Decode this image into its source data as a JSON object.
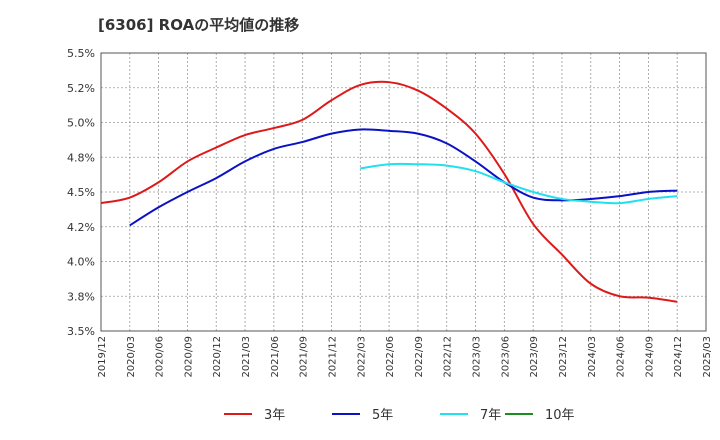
{
  "chart_data": {
    "type": "line",
    "title": "[6306]  ROAの平均値の推移",
    "yticks": [
      "5.5%",
      "5.2%",
      "5.0%",
      "4.8%",
      "4.5%",
      "4.2%",
      "4.0%",
      "3.8%",
      "3.5%"
    ],
    "ylim": [
      3.5,
      5.5
    ],
    "xticks": [
      "2019/12",
      "2020/03",
      "2020/06",
      "2020/09",
      "2020/12",
      "2021/03",
      "2021/06",
      "2021/09",
      "2021/12",
      "2022/03",
      "2022/06",
      "2022/09",
      "2022/12",
      "2023/03",
      "2023/06",
      "2023/09",
      "2023/12",
      "2024/03",
      "2024/06",
      "2024/09",
      "2024/12",
      "2025/03"
    ],
    "grid": true,
    "legend_position": "bottom",
    "series": [
      {
        "name": "3年",
        "color": "#dd1a1a",
        "x": [
          "2019/12",
          "2020/03",
          "2020/06",
          "2020/09",
          "2020/12",
          "2021/03",
          "2021/06",
          "2021/09",
          "2021/12",
          "2022/03",
          "2022/06",
          "2022/09",
          "2022/12",
          "2023/03",
          "2023/06",
          "2023/09",
          "2023/12",
          "2024/03",
          "2024/06",
          "2024/09",
          "2024/12"
        ],
        "values": [
          4.42,
          4.46,
          4.57,
          4.72,
          4.82,
          4.91,
          4.96,
          5.02,
          5.16,
          5.27,
          5.29,
          5.23,
          5.1,
          4.92,
          4.63,
          4.27,
          4.05,
          3.84,
          3.75,
          3.74,
          3.71
        ]
      },
      {
        "name": "5年",
        "color": "#0b12c4",
        "x": [
          "2020/03",
          "2020/06",
          "2020/09",
          "2020/12",
          "2021/03",
          "2021/06",
          "2021/09",
          "2021/12",
          "2022/03",
          "2022/06",
          "2022/09",
          "2022/12",
          "2023/03",
          "2023/06",
          "2023/09",
          "2023/12",
          "2024/03",
          "2024/06",
          "2024/09",
          "2024/12"
        ],
        "values": [
          4.26,
          4.39,
          4.5,
          4.6,
          4.72,
          4.81,
          4.86,
          4.92,
          4.95,
          4.94,
          4.92,
          4.85,
          4.72,
          4.57,
          4.46,
          4.44,
          4.45,
          4.47,
          4.5,
          4.51
        ]
      },
      {
        "name": "7年",
        "color": "#22e0ee",
        "x": [
          "2022/03",
          "2022/06",
          "2022/09",
          "2022/12",
          "2023/03",
          "2023/06",
          "2023/09",
          "2023/12",
          "2024/03",
          "2024/06",
          "2024/09",
          "2024/12"
        ],
        "values": [
          4.67,
          4.7,
          4.7,
          4.69,
          4.65,
          4.57,
          4.5,
          4.45,
          4.43,
          4.42,
          4.45,
          4.47
        ]
      },
      {
        "name": "10年",
        "color": "#1e8c1e",
        "x": [],
        "values": []
      }
    ]
  }
}
